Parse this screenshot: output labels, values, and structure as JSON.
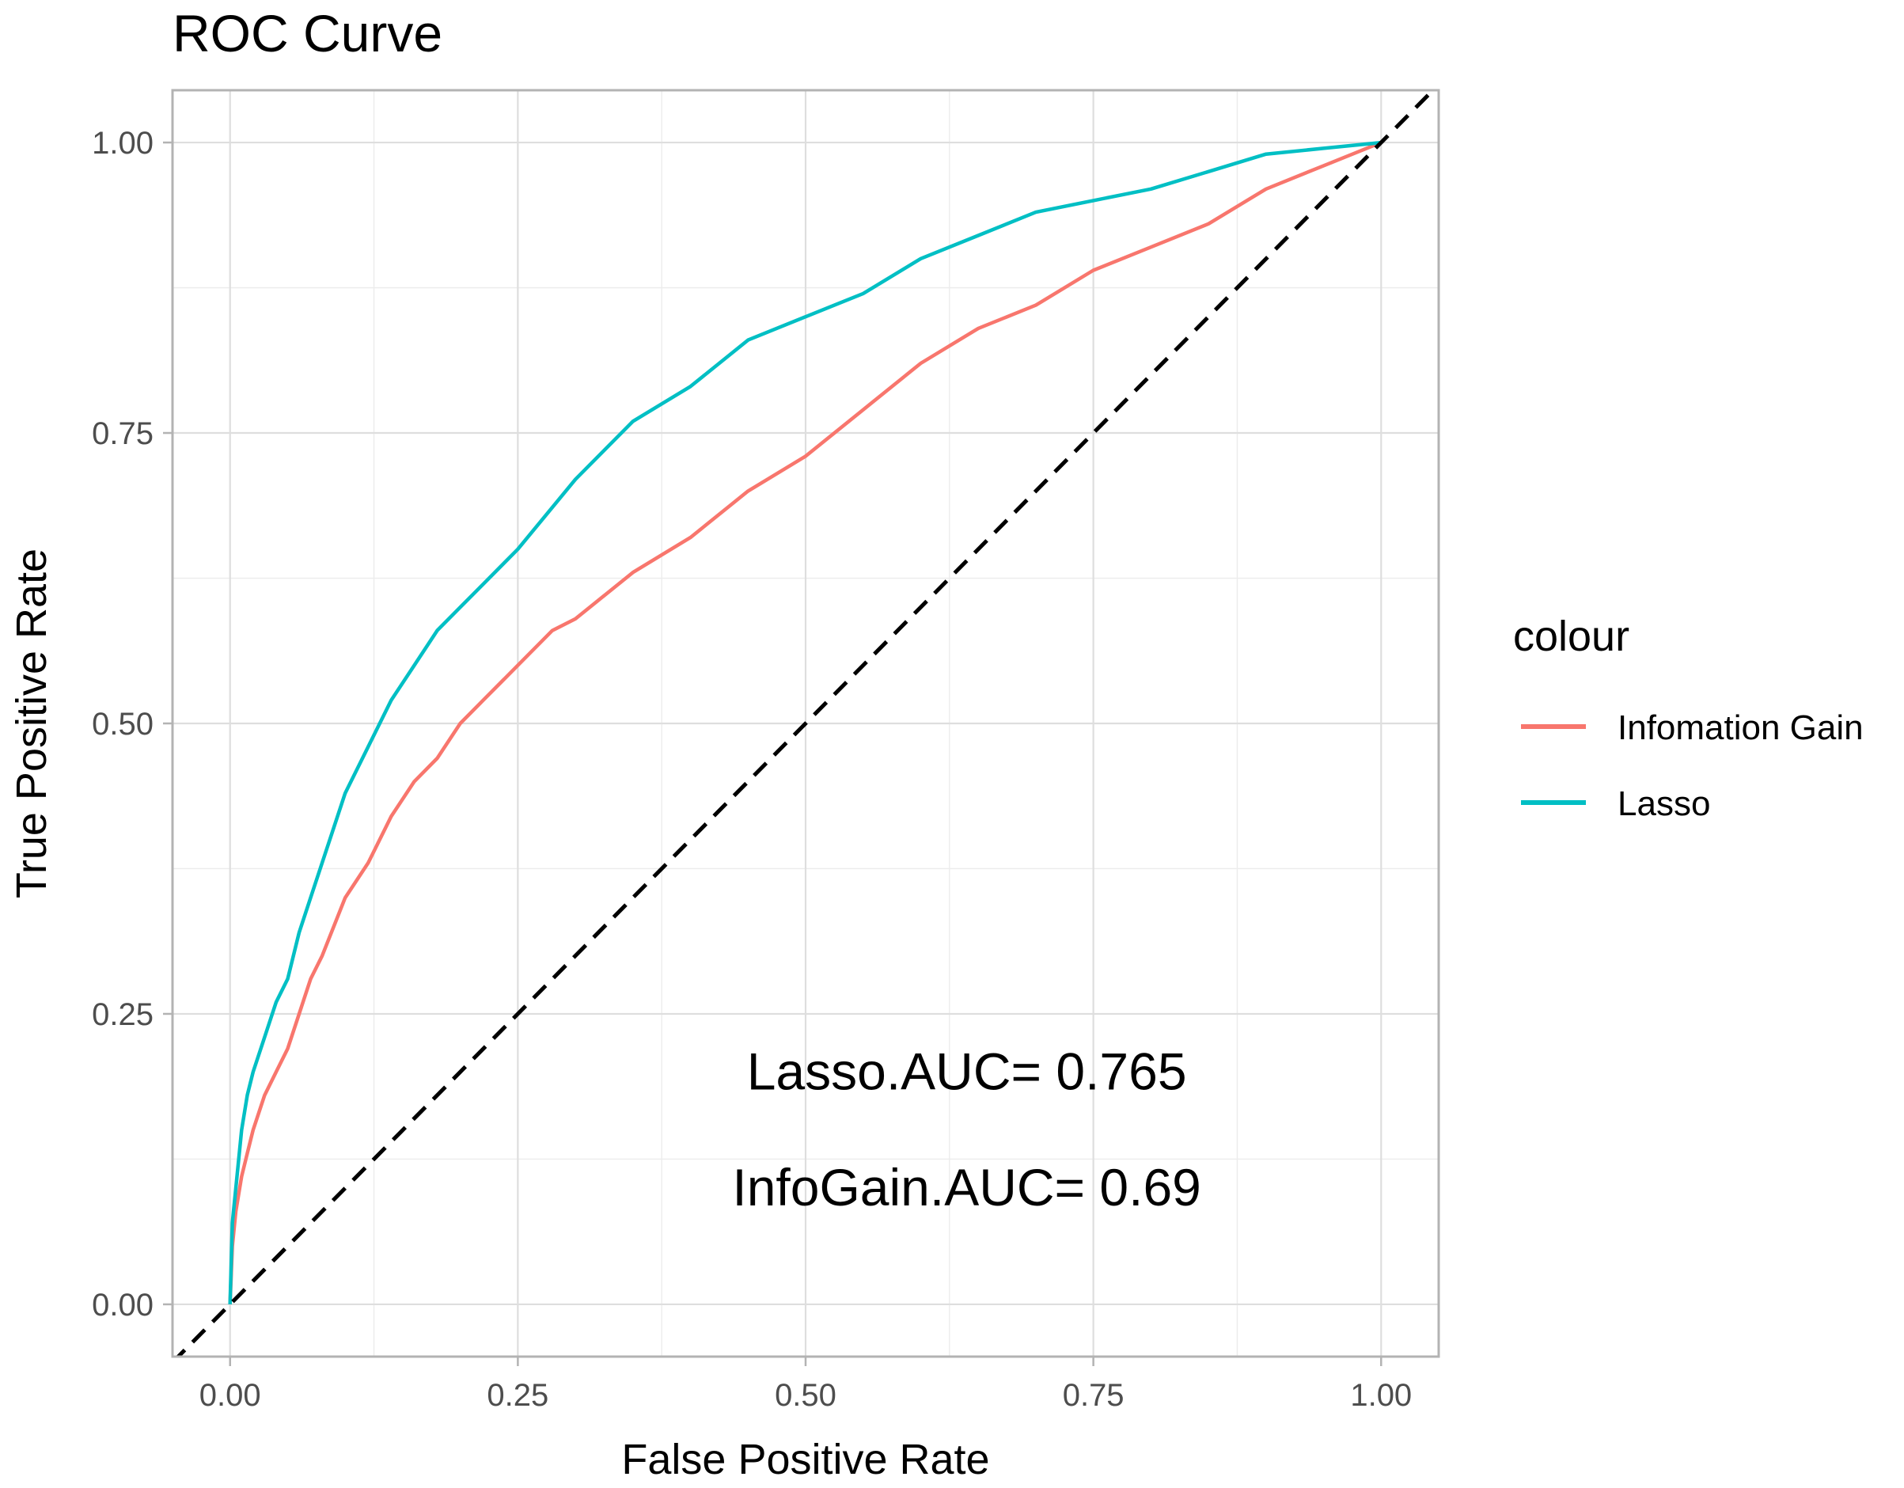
{
  "chart_data": {
    "type": "line",
    "title": "ROC Curve",
    "xlabel": "False Positive Rate",
    "ylabel": "True Positive Rate",
    "xlim": [
      -0.05,
      1.05
    ],
    "ylim": [
      -0.045,
      1.045
    ],
    "xticks": [
      0,
      0.25,
      0.5,
      0.75,
      1
    ],
    "xtick_labels": [
      "0.00",
      "0.25",
      "0.50",
      "0.75",
      "1.00"
    ],
    "yticks": [
      0,
      0.25,
      0.5,
      0.75,
      1
    ],
    "ytick_labels": [
      "0.00",
      "0.25",
      "0.50",
      "0.75",
      "1.00"
    ],
    "grid": true,
    "legend": {
      "title": "colour",
      "position": "right",
      "entries": [
        "Infomation Gain",
        "Lasso"
      ]
    },
    "series": [
      {
        "name": "Infomation Gain",
        "color": "#F8766D",
        "x": [
          0,
          0.002,
          0.005,
          0.01,
          0.015,
          0.02,
          0.03,
          0.04,
          0.05,
          0.06,
          0.07,
          0.08,
          0.1,
          0.12,
          0.14,
          0.16,
          0.18,
          0.2,
          0.22,
          0.25,
          0.28,
          0.3,
          0.35,
          0.4,
          0.45,
          0.5,
          0.55,
          0.6,
          0.65,
          0.7,
          0.75,
          0.8,
          0.85,
          0.9,
          0.95,
          1.0
        ],
        "y": [
          0,
          0.05,
          0.08,
          0.11,
          0.13,
          0.15,
          0.18,
          0.2,
          0.22,
          0.25,
          0.28,
          0.3,
          0.35,
          0.38,
          0.42,
          0.45,
          0.47,
          0.5,
          0.52,
          0.55,
          0.58,
          0.59,
          0.63,
          0.66,
          0.7,
          0.73,
          0.77,
          0.81,
          0.84,
          0.86,
          0.89,
          0.91,
          0.93,
          0.96,
          0.98,
          1.0
        ]
      },
      {
        "name": "Lasso",
        "color": "#00BFC4",
        "x": [
          0,
          0.002,
          0.005,
          0.01,
          0.015,
          0.02,
          0.03,
          0.04,
          0.05,
          0.06,
          0.07,
          0.08,
          0.1,
          0.12,
          0.14,
          0.16,
          0.18,
          0.2,
          0.22,
          0.25,
          0.3,
          0.35,
          0.4,
          0.45,
          0.5,
          0.55,
          0.6,
          0.65,
          0.7,
          0.75,
          0.8,
          0.85,
          0.9,
          0.95,
          1.0
        ],
        "y": [
          0,
          0.07,
          0.1,
          0.15,
          0.18,
          0.2,
          0.23,
          0.26,
          0.28,
          0.32,
          0.35,
          0.38,
          0.44,
          0.48,
          0.52,
          0.55,
          0.58,
          0.6,
          0.62,
          0.65,
          0.71,
          0.76,
          0.79,
          0.83,
          0.85,
          0.87,
          0.9,
          0.92,
          0.94,
          0.95,
          0.96,
          0.975,
          0.99,
          0.995,
          1.0
        ]
      },
      {
        "name": "diagonal",
        "color": "#000000",
        "dashed": true,
        "x": [
          -0.05,
          1.05
        ],
        "y": [
          -0.05,
          1.05
        ]
      }
    ],
    "annotations": [
      {
        "text": "Lasso.AUC= 0.765",
        "x": 0.64,
        "y": 0.2
      },
      {
        "text": "InfoGain.AUC= 0.69",
        "x": 0.64,
        "y": 0.1
      }
    ]
  }
}
